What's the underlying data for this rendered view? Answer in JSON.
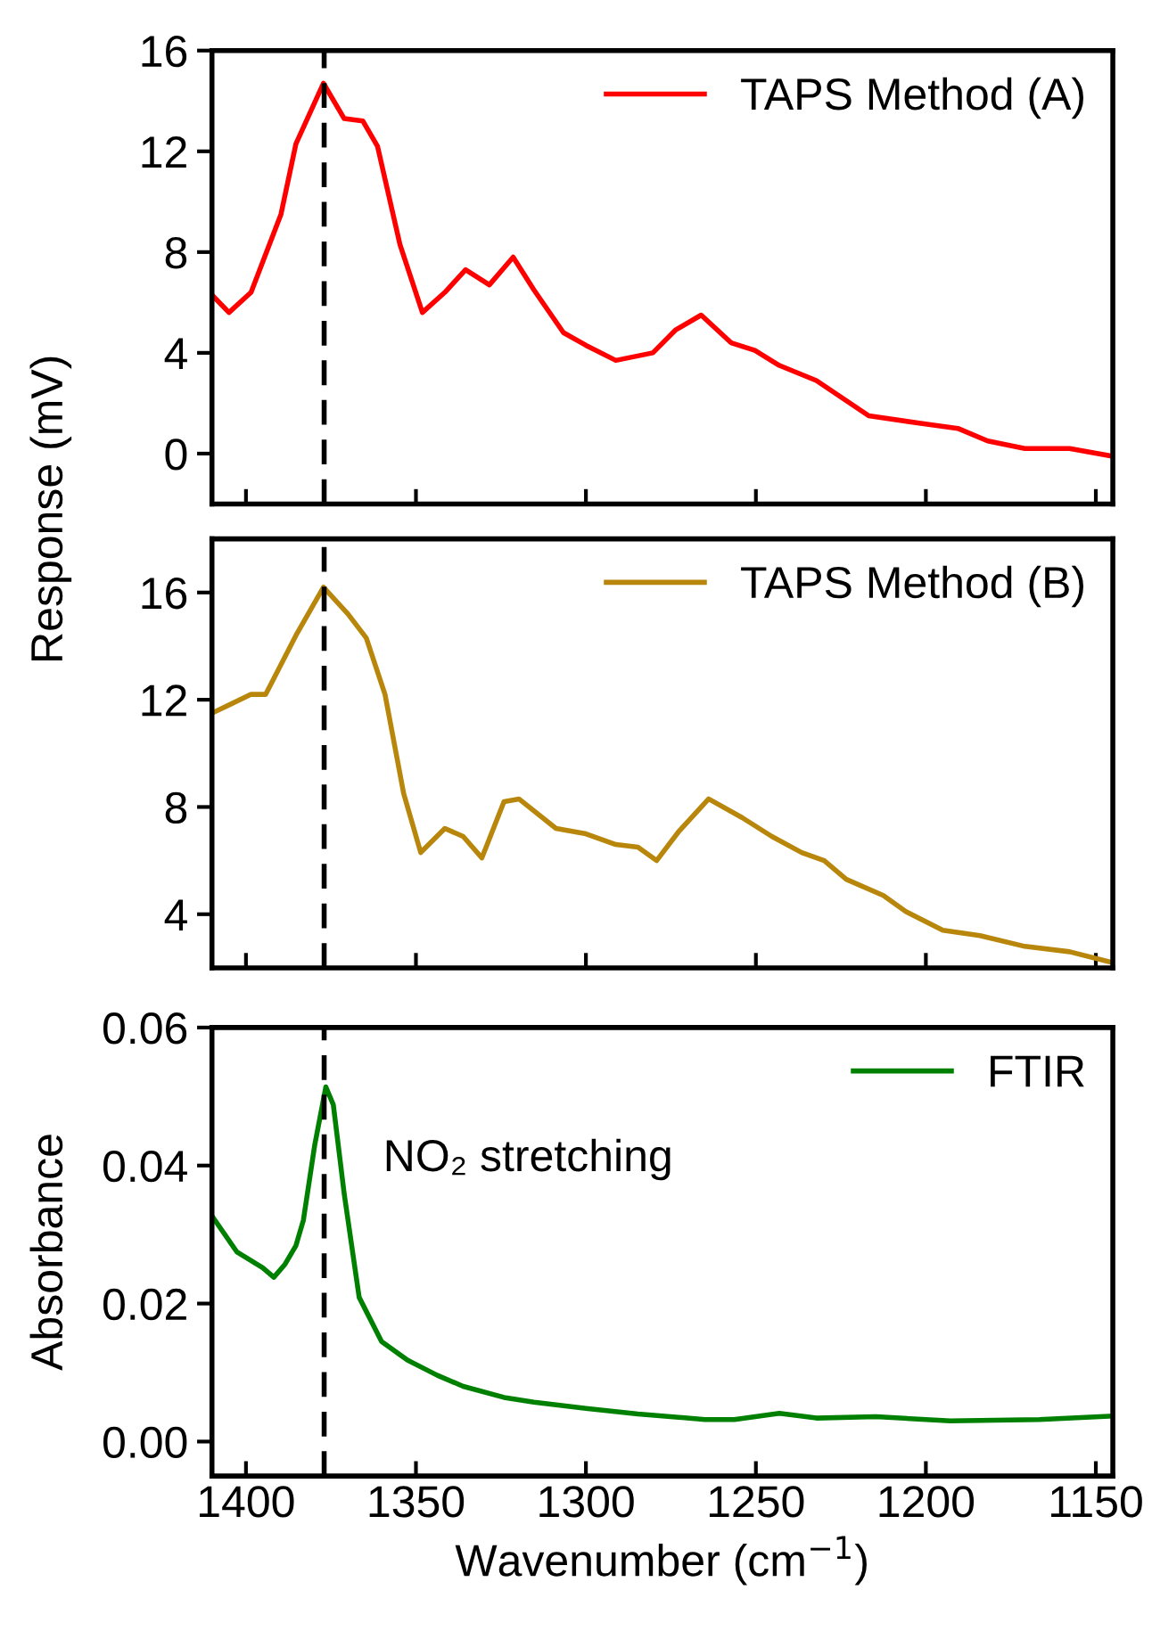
{
  "chart_data": [
    {
      "type": "line",
      "ylabel": "Response (mV)",
      "xlim": [
        1410,
        1145
      ],
      "xticks": [
        1400,
        1350,
        1300,
        1250,
        1200,
        1150
      ],
      "ylim": [
        -2,
        16
      ],
      "yticks": [
        0,
        4,
        8,
        12,
        16
      ],
      "tick_labels": "y",
      "legend": "top right",
      "grid": false,
      "line_style": "solid",
      "ref_lines": [
        {
          "axis": "x",
          "value": 1377,
          "color": "#000000",
          "line_style": "dashed"
        }
      ],
      "series": [
        {
          "name": "TAPS Method (A)",
          "color": "#ff0000",
          "x": [
            1410,
            1405,
            1398.5,
            1389.7,
            1385.3,
            1377.2,
            1371.1,
            1365.6,
            1361.3,
            1354.7,
            1348.1,
            1341.5,
            1335.4,
            1328.4,
            1321.4,
            1315.3,
            1306.6,
            1300,
            1291.2,
            1280.3,
            1273.7,
            1266.1,
            1257.3,
            1250.3,
            1243.1,
            1232.2,
            1216.8,
            1201.5,
            1190.6,
            1181.8,
            1170.9,
            1157.7,
            1145.3
          ],
          "values": [
            6.3,
            5.6,
            6.4,
            9.5,
            12.3,
            14.7,
            13.3,
            13.2,
            12.2,
            8.3,
            5.6,
            6.4,
            7.3,
            6.7,
            7.8,
            6.5,
            4.8,
            4.3,
            3.7,
            4.0,
            4.9,
            5.5,
            4.4,
            4.1,
            3.5,
            2.9,
            1.5,
            1.2,
            1.0,
            0.5,
            0.2,
            0.2,
            -0.1
          ]
        }
      ]
    },
    {
      "type": "line",
      "xlim": [
        1410,
        1145
      ],
      "xticks": [
        1400,
        1350,
        1300,
        1250,
        1200,
        1150
      ],
      "ylim": [
        2,
        18
      ],
      "yticks": [
        4,
        8,
        12,
        16
      ],
      "tick_labels": "y",
      "legend": "top right",
      "grid": false,
      "line_style": "solid",
      "ref_lines": [
        {
          "axis": "x",
          "value": 1377,
          "color": "#000000",
          "line_style": "dashed"
        }
      ],
      "series": [
        {
          "name": "TAPS Method (B)",
          "color": "#b8860b",
          "x": [
            1410,
            1398.5,
            1394.2,
            1385.3,
            1377.2,
            1370,
            1364.6,
            1359.1,
            1353.6,
            1348.6,
            1341.5,
            1336.1,
            1330.6,
            1324.1,
            1319.7,
            1308.8,
            1300,
            1291.2,
            1284.7,
            1279.2,
            1272.6,
            1263.9,
            1254.0,
            1245.3,
            1236.5,
            1229.9,
            1223.4,
            1212.5,
            1205.9,
            1195.0,
            1184.1,
            1170.9,
            1157.7,
            1145.3
          ],
          "values": [
            11.5,
            12.2,
            12.2,
            14.4,
            16.2,
            15.2,
            14.3,
            12.2,
            8.5,
            6.3,
            7.2,
            6.9,
            6.1,
            8.2,
            8.3,
            7.2,
            7.0,
            6.6,
            6.5,
            6.0,
            7.1,
            8.3,
            7.6,
            6.9,
            6.3,
            6.0,
            5.3,
            4.7,
            4.1,
            3.4,
            3.2,
            2.8,
            2.6,
            2.2
          ]
        }
      ]
    },
    {
      "type": "line",
      "xlabel": "Wavenumber (cm$^{−1}$)",
      "ylabel": "Absorbance",
      "xlim": [
        1410,
        1145
      ],
      "xticks": [
        1400,
        1350,
        1300,
        1250,
        1200,
        1150
      ],
      "ylim": [
        -0.005,
        0.06
      ],
      "yticks": [
        {
          "value": 0,
          "label": "0.00"
        },
        {
          "value": 0.02,
          "label": "0.02"
        },
        {
          "value": 0.04,
          "label": "0.04"
        },
        {
          "value": 0.06,
          "label": "0.06"
        }
      ],
      "legend": "top right",
      "grid": false,
      "line_style": "solid",
      "annotations": [
        "NO₂ stretching"
      ],
      "ref_lines": [
        {
          "axis": "x",
          "value": 1377,
          "color": "#000000",
          "line_style": "dashed"
        }
      ],
      "series": [
        {
          "name": "FTIR",
          "color": "#008000",
          "x": [
            1410,
            1407.2,
            1402.7,
            1395.1,
            1391.8,
            1388.5,
            1385.3,
            1383.1,
            1379.8,
            1376.5,
            1374.3,
            1371.1,
            1366.7,
            1360.1,
            1352.5,
            1343.7,
            1336.1,
            1324.1,
            1315.3,
            1300,
            1284.7,
            1265.0,
            1256.3,
            1243.1,
            1232.2,
            1214.7,
            1192.8,
            1166.6,
            1145.3
          ],
          "values": [
            0.0327,
            0.0307,
            0.0275,
            0.0252,
            0.0238,
            0.0257,
            0.0284,
            0.0321,
            0.0429,
            0.0514,
            0.0488,
            0.0359,
            0.0209,
            0.0145,
            0.0118,
            0.0096,
            0.008,
            0.0064,
            0.0057,
            0.0048,
            0.004,
            0.0032,
            0.0032,
            0.0041,
            0.0034,
            0.0036,
            0.003,
            0.0032,
            0.0037
          ]
        }
      ]
    }
  ]
}
